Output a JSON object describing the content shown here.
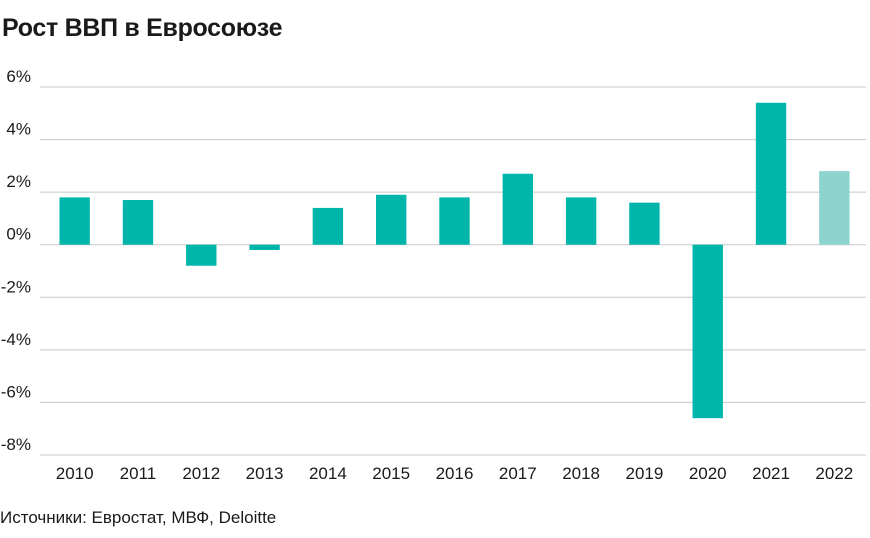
{
  "title": "Рост ВВП в Евросоюзе",
  "source": "Источники: Евростат, МВФ, Deloitte",
  "colors": {
    "actual": "#00b5aa",
    "forecast": "#8ed3cf",
    "grid": "#c8c8c8",
    "text": "#1a1a1a"
  },
  "chart_data": {
    "type": "bar",
    "title": "Рост ВВП в Евросоюзе",
    "xlabel": "",
    "ylabel": "",
    "categories": [
      "2010",
      "2011",
      "2012",
      "2013",
      "2014",
      "2015",
      "2016",
      "2017",
      "2018",
      "2019",
      "2020",
      "2021",
      "2022"
    ],
    "values": [
      1.8,
      1.7,
      -0.8,
      -0.2,
      1.4,
      1.9,
      1.8,
      2.7,
      1.8,
      1.6,
      -6.6,
      5.4,
      2.8
    ],
    "forecast_categories": [
      "2022"
    ],
    "ylim": [
      -8,
      6
    ],
    "yticks": [
      6,
      4,
      2,
      0,
      -2,
      -4,
      -6,
      -8
    ],
    "ytick_labels": [
      "6%",
      "4%",
      "2%",
      "0%",
      "-2%",
      "-4%",
      "-6%",
      "-8%"
    ],
    "grid": true,
    "legend": "none"
  }
}
